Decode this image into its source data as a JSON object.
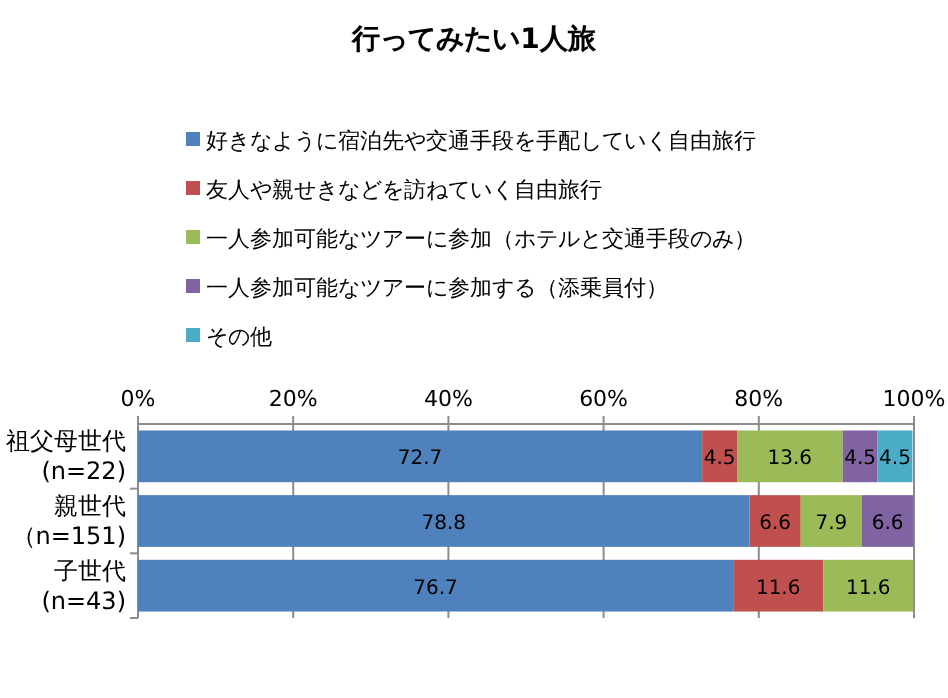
{
  "chart_data": {
    "type": "bar",
    "orientation": "horizontal",
    "stacked": true,
    "title": "行ってみたい1人旅",
    "categories": [
      "祖父母世代(n=22)",
      "親世代（n=151)",
      "子世代(n=43)"
    ],
    "series": [
      {
        "name": "好きなように宿泊先や交通手段を手配していく自由旅行",
        "color": "#4f81bd",
        "values": [
          72.7,
          78.8,
          76.7
        ]
      },
      {
        "name": "友人や親せきなどを訪ねていく自由旅行",
        "color": "#c0504d",
        "values": [
          4.5,
          6.6,
          11.6
        ]
      },
      {
        "name": "一人参加可能なツアーに参加（ホテルと交通手段のみ）",
        "color": "#9bbb59",
        "values": [
          13.6,
          7.9,
          11.6
        ]
      },
      {
        "name": "一人参加可能なツアーに参加する（添乗員付）",
        "color": "#8064a2",
        "values": [
          4.5,
          6.6,
          null
        ]
      },
      {
        "name": "その他",
        "color": "#4bacc6",
        "values": [
          4.5,
          null,
          null
        ]
      }
    ],
    "xlim": [
      0,
      100
    ],
    "xticks": [
      {
        "value": 0,
        "label": "0%"
      },
      {
        "value": 20,
        "label": "20%"
      },
      {
        "value": 40,
        "label": "40%"
      },
      {
        "value": 60,
        "label": "60%"
      },
      {
        "value": 80,
        "label": "80%"
      },
      {
        "value": 100,
        "label": "100%"
      }
    ],
    "grid": "x",
    "legend": "top",
    "data_labels": true
  }
}
